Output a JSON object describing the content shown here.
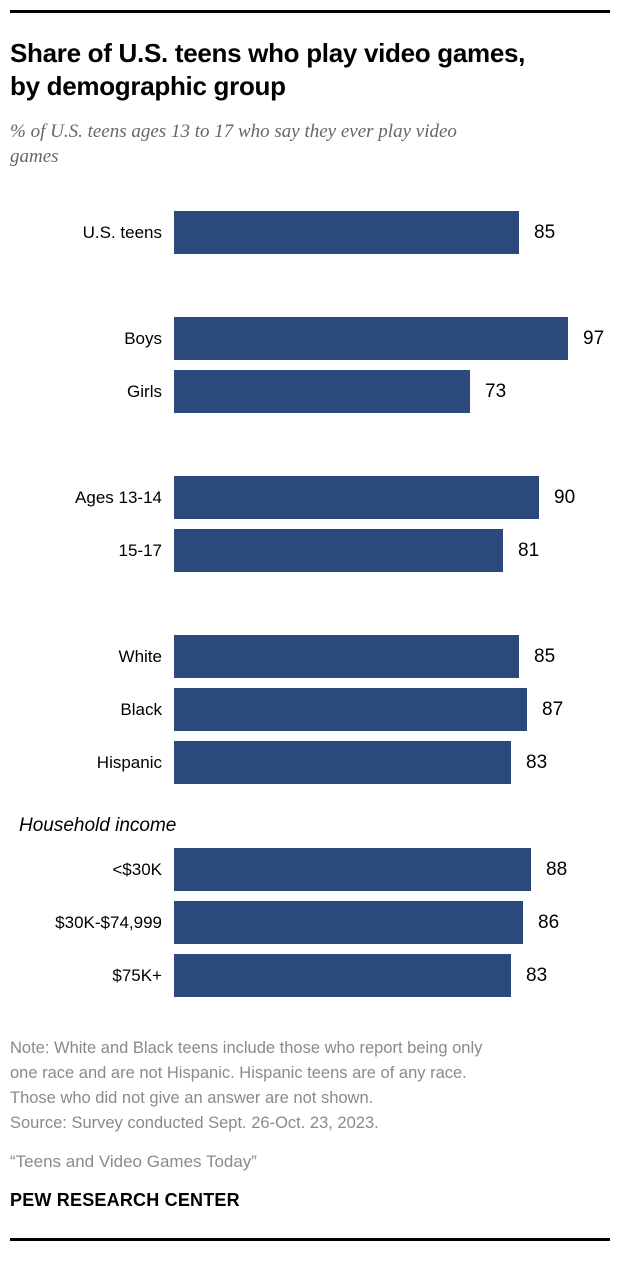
{
  "header": {
    "title": "Share of U.S. teens who play video games, by demographic group",
    "subtitle": "% of U.S. teens ages 13 to 17 who say they ever play video games"
  },
  "chart_data": {
    "type": "bar",
    "orientation": "horizontal",
    "unit": "%",
    "xlim": [
      0,
      100
    ],
    "bar_color": "#2B4A7B",
    "grid": false,
    "legend": false,
    "groups": [
      {
        "rows": [
          {
            "label": "U.S. teens",
            "value": 85
          }
        ]
      },
      {
        "rows": [
          {
            "label": "Boys",
            "value": 97
          },
          {
            "label": "Girls",
            "value": 73
          }
        ]
      },
      {
        "rows": [
          {
            "label": "Ages 13-14",
            "value": 90
          },
          {
            "label": "15-17",
            "value": 81
          }
        ]
      },
      {
        "rows": [
          {
            "label": "White",
            "value": 85
          },
          {
            "label": "Black",
            "value": 87
          },
          {
            "label": "Hispanic",
            "value": 83
          }
        ]
      },
      {
        "header": "Household income",
        "rows": [
          {
            "label": "<$30K",
            "value": 88
          },
          {
            "label": "$30K-$74,999",
            "value": 86
          },
          {
            "label": "$75K+",
            "value": 83
          }
        ]
      }
    ]
  },
  "footer": {
    "note_lines": [
      "Note: White and Black teens include those who report being only",
      "one race and are not Hispanic. Hispanic teens are of any race.",
      "Those who did not give an answer are not shown.",
      "Source: Survey conducted Sept. 26-Oct. 23, 2023."
    ],
    "report_title": "“Teens and Video Games Today”",
    "org": "PEW RESEARCH CENTER"
  }
}
